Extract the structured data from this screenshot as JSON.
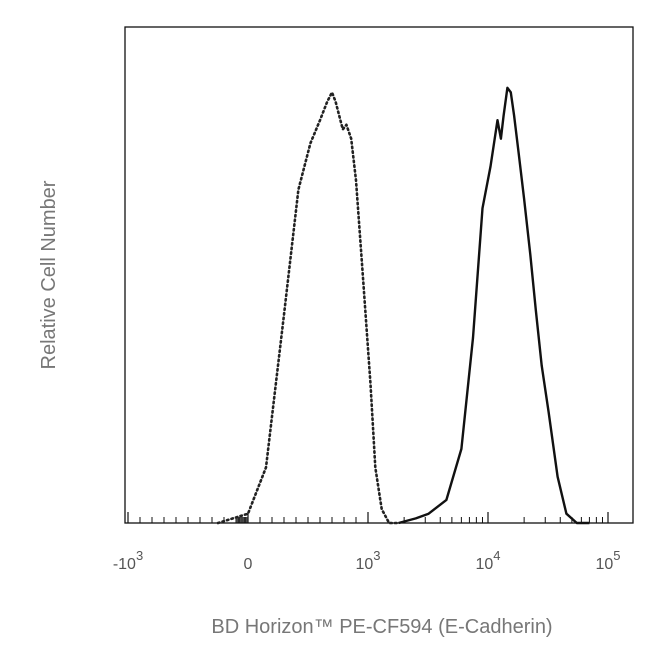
{
  "chart_data": {
    "type": "line",
    "title": "",
    "xlabel": "BD Horizon™ PE-CF594 (E-Cadherin)",
    "ylabel": "Relative Cell Number",
    "x_scale": "biexponential",
    "xlim": [
      -2500,
      200000
    ],
    "ylim": [
      0,
      1
    ],
    "grid": false,
    "legend": "none",
    "x_ticks": [
      {
        "value": -1000,
        "base": "-10",
        "exp": "3"
      },
      {
        "value": 0,
        "base": "0",
        "exp": ""
      },
      {
        "value": 1000,
        "base": "10",
        "exp": "3"
      },
      {
        "value": 10000,
        "base": "10",
        "exp": "4"
      },
      {
        "value": 100000,
        "base": "10",
        "exp": "5"
      }
    ],
    "series": [
      {
        "style": "dotted",
        "color": "#222222",
        "x": [
          -250,
          0,
          150,
          300,
          420,
          520,
          600,
          660,
          700,
          730,
          760,
          790,
          820,
          860,
          900,
          950,
          1050,
          1150,
          1300,
          1500,
          1800
        ],
        "y": [
          0,
          0.02,
          0.12,
          0.45,
          0.72,
          0.82,
          0.87,
          0.91,
          0.93,
          0.91,
          0.88,
          0.85,
          0.86,
          0.83,
          0.74,
          0.56,
          0.3,
          0.12,
          0.03,
          0.0,
          0.0
        ]
      },
      {
        "style": "solid",
        "color": "#111111",
        "x": [
          1800,
          2500,
          3200,
          4500,
          6000,
          7500,
          9000,
          10500,
          12000,
          12800,
          13500,
          14500,
          15500,
          16500,
          18000,
          20000,
          22500,
          25000,
          28000,
          32000,
          38000,
          45000,
          55000,
          70000
        ],
        "y": [
          0.0,
          0.01,
          0.02,
          0.05,
          0.16,
          0.4,
          0.68,
          0.77,
          0.87,
          0.83,
          0.88,
          0.94,
          0.93,
          0.88,
          0.8,
          0.7,
          0.58,
          0.46,
          0.34,
          0.24,
          0.1,
          0.02,
          0.0,
          0.0
        ]
      }
    ]
  }
}
